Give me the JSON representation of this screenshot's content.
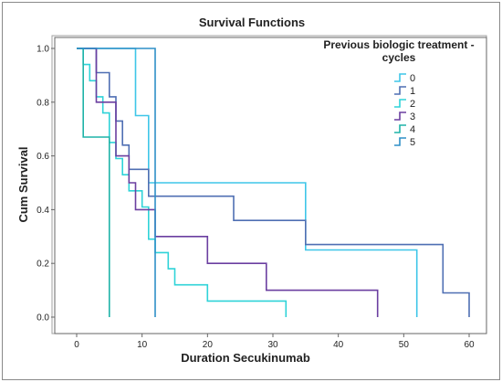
{
  "chart_data": {
    "type": "line",
    "step": true,
    "title": "Survival Functions",
    "xlabel": "Duration Secukinumab",
    "ylabel": "Cum Survival",
    "xlim": [
      0,
      60
    ],
    "ylim": [
      0,
      1
    ],
    "x_ticks": [
      0,
      10,
      20,
      30,
      40,
      50,
      60
    ],
    "y_ticks": [
      0.0,
      0.2,
      0.4,
      0.6,
      0.8,
      1.0
    ],
    "x_tick_labels": [
      "0",
      "10",
      "20",
      "30",
      "40",
      "50",
      "60"
    ],
    "y_tick_labels": [
      "0.0",
      "0.2",
      "0.4",
      "0.6",
      "0.8",
      "1.0"
    ],
    "grid": false,
    "legend_title_lines": [
      "Previous biologic treatment -",
      "cycles"
    ],
    "legend_position": "top-right",
    "series": [
      {
        "name": "0",
        "color": "#3ec6e8",
        "points": [
          [
            0,
            1.0
          ],
          [
            9,
            1.0
          ],
          [
            9,
            0.75
          ],
          [
            11,
            0.75
          ],
          [
            11,
            0.5
          ],
          [
            35,
            0.5
          ],
          [
            35,
            0.25
          ],
          [
            52,
            0.25
          ],
          [
            52,
            0.0
          ]
        ]
      },
      {
        "name": "1",
        "color": "#4f6fb3",
        "points": [
          [
            0,
            1.0
          ],
          [
            3,
            1.0
          ],
          [
            3,
            0.91
          ],
          [
            5,
            0.91
          ],
          [
            5,
            0.82
          ],
          [
            6,
            0.82
          ],
          [
            6,
            0.73
          ],
          [
            7,
            0.73
          ],
          [
            7,
            0.64
          ],
          [
            8,
            0.64
          ],
          [
            8,
            0.55
          ],
          [
            11,
            0.55
          ],
          [
            11,
            0.45
          ],
          [
            24,
            0.45
          ],
          [
            24,
            0.36
          ],
          [
            35,
            0.36
          ],
          [
            35,
            0.27
          ],
          [
            56,
            0.27
          ],
          [
            56,
            0.09
          ],
          [
            60,
            0.09
          ],
          [
            60,
            0.0
          ]
        ]
      },
      {
        "name": "2",
        "color": "#2fd3d8",
        "points": [
          [
            0,
            1.0
          ],
          [
            1,
            1.0
          ],
          [
            1,
            0.94
          ],
          [
            2,
            0.94
          ],
          [
            2,
            0.88
          ],
          [
            3,
            0.88
          ],
          [
            3,
            0.82
          ],
          [
            4,
            0.82
          ],
          [
            4,
            0.76
          ],
          [
            5,
            0.76
          ],
          [
            5,
            0.65
          ],
          [
            6,
            0.65
          ],
          [
            6,
            0.59
          ],
          [
            7,
            0.59
          ],
          [
            7,
            0.53
          ],
          [
            8,
            0.53
          ],
          [
            8,
            0.47
          ],
          [
            10,
            0.47
          ],
          [
            10,
            0.41
          ],
          [
            11,
            0.41
          ],
          [
            11,
            0.29
          ],
          [
            12,
            0.29
          ],
          [
            12,
            0.24
          ],
          [
            14,
            0.24
          ],
          [
            14,
            0.18
          ],
          [
            15,
            0.18
          ],
          [
            15,
            0.12
          ],
          [
            20,
            0.12
          ],
          [
            20,
            0.06
          ],
          [
            32,
            0.06
          ],
          [
            32,
            0.0
          ]
        ]
      },
      {
        "name": "3",
        "color": "#6b3fa0",
        "points": [
          [
            0,
            1.0
          ],
          [
            3,
            1.0
          ],
          [
            3,
            0.8
          ],
          [
            6,
            0.8
          ],
          [
            6,
            0.6
          ],
          [
            8,
            0.6
          ],
          [
            8,
            0.5
          ],
          [
            9,
            0.5
          ],
          [
            9,
            0.4
          ],
          [
            12,
            0.4
          ],
          [
            12,
            0.3
          ],
          [
            20,
            0.3
          ],
          [
            20,
            0.2
          ],
          [
            29,
            0.2
          ],
          [
            29,
            0.1
          ],
          [
            46,
            0.1
          ],
          [
            46,
            0.0
          ]
        ]
      },
      {
        "name": "4",
        "color": "#1fb3a8",
        "points": [
          [
            0,
            1.0
          ],
          [
            1,
            1.0
          ],
          [
            1,
            0.67
          ],
          [
            5,
            0.67
          ],
          [
            5,
            0.0
          ]
        ]
      },
      {
        "name": "5",
        "color": "#2e8fc7",
        "points": [
          [
            0,
            1.0
          ],
          [
            12,
            1.0
          ],
          [
            12,
            0.0
          ]
        ]
      }
    ]
  }
}
